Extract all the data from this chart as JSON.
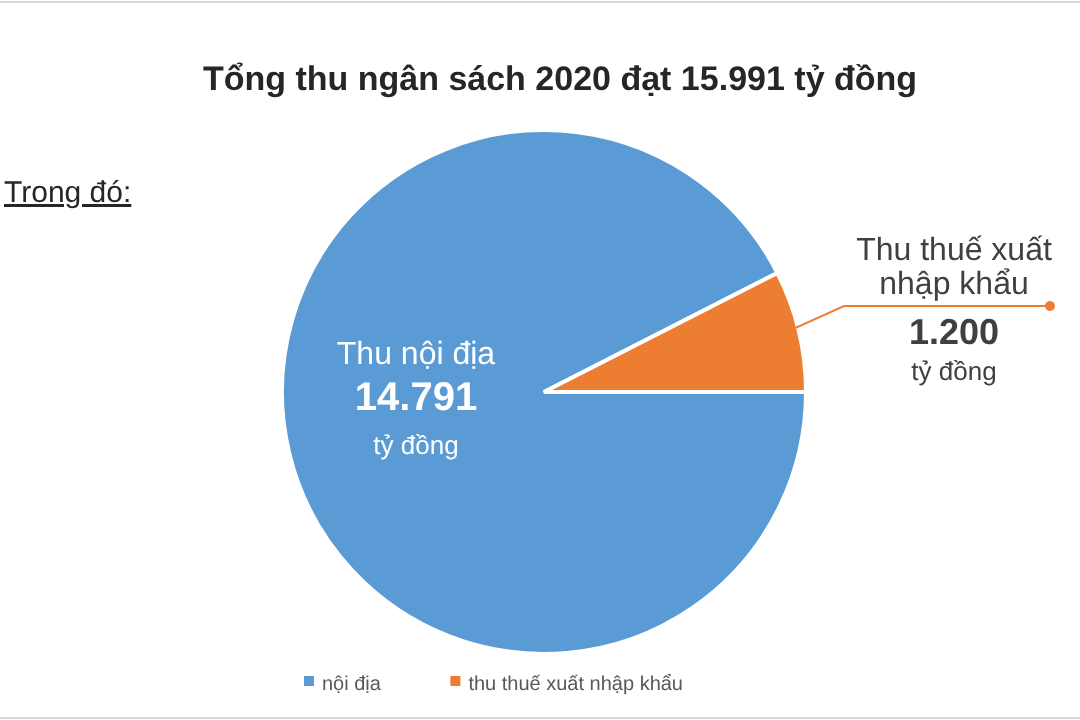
{
  "chart_data": {
    "type": "pie",
    "title": "Tổng thu ngân sách 2020 đạt 15.991 tỷ đồng",
    "categories": [
      "nội địa",
      "thu thuế xuất nhập khẩu"
    ],
    "values": [
      14791,
      1200
    ],
    "colors": [
      "#5b9bd5",
      "#ed7d31"
    ],
    "value_labels": [
      "14.791",
      "1.200"
    ],
    "annotations": [
      "Trong đó:",
      "Thu nội địa",
      "tỷ đồng",
      "Thu thuế xuất nhập khẩu",
      "tỷ đồng"
    ],
    "legend": "bottom"
  }
}
